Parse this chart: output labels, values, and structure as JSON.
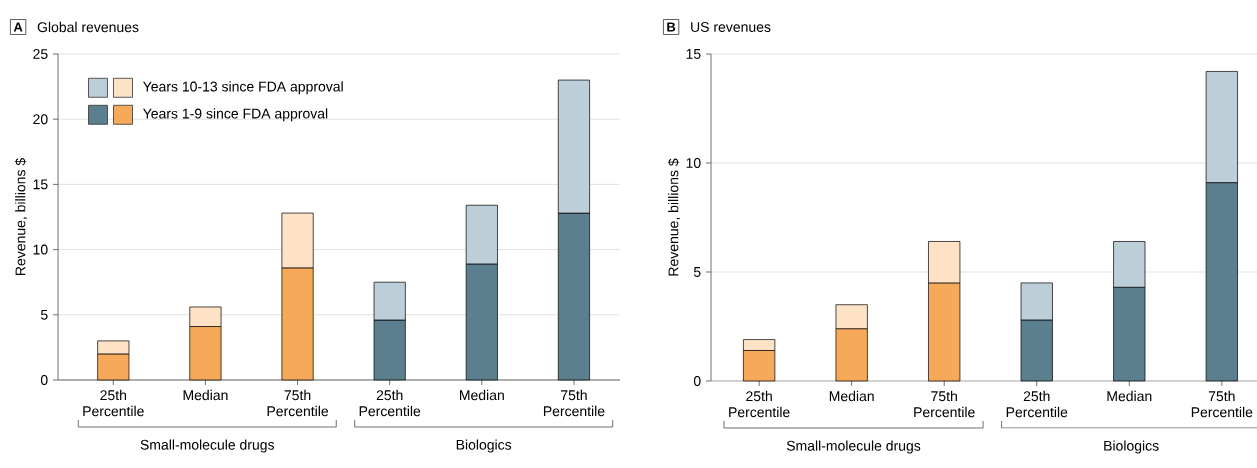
{
  "chart_data": [
    {
      "type": "bar",
      "title": "Global revenues",
      "ylabel": "Revenue, billions $",
      "stacked": true,
      "legend": "top left",
      "grid": "y",
      "annotations": [
        "A",
        "Small-molecule drugs",
        "Biologics"
      ],
      "categories": [
        "25th Percentile",
        "Median",
        "75th Percentile",
        "25th Percentile",
        "Median",
        "75th Percentile"
      ],
      "ylim": [
        0,
        25
      ],
      "yticks": [
        0,
        5,
        10,
        15,
        20,
        25
      ],
      "series": [
        {
          "name": "Years 1-9 since FDA approval",
          "colors": [
            "#f7a95a",
            "#f7a95a",
            "#f7a95a",
            "#5b7f8f",
            "#5b7f8f",
            "#5b7f8f"
          ],
          "values": [
            2.0,
            4.1,
            8.6,
            4.6,
            8.9,
            12.8
          ]
        },
        {
          "name": "Years 10-13 since FDA approval",
          "colors": [
            "#fde2c6",
            "#fde2c6",
            "#fde2c6",
            "#bccfd9",
            "#bccfd9",
            "#bccfd9"
          ],
          "values": [
            1.0,
            1.5,
            4.2,
            2.9,
            4.5,
            10.2
          ]
        }
      ]
    },
    {
      "type": "bar",
      "title": "US revenues",
      "ylabel": "Revenue, billions $",
      "stacked": true,
      "grid": "y",
      "annotations": [
        "B",
        "Small-molecule drugs",
        "Biologics"
      ],
      "categories": [
        "25th Percentile",
        "Median",
        "75th Percentile",
        "25th Percentile",
        "Median",
        "75th Percentile"
      ],
      "ylim": [
        0,
        15
      ],
      "yticks": [
        0,
        5,
        10,
        15
      ],
      "series": [
        {
          "colors": [
            "#f7a95a",
            "#f7a95a",
            "#f7a95a",
            "#5b7f8f",
            "#5b7f8f",
            "#5b7f8f"
          ],
          "values": [
            1.4,
            2.4,
            4.5,
            2.8,
            4.3,
            9.1
          ]
        },
        {
          "colors": [
            "#fde2c6",
            "#fde2c6",
            "#fde2c6",
            "#bccfd9",
            "#bccfd9",
            "#bccfd9"
          ],
          "values": [
            0.5,
            1.1,
            1.9,
            1.7,
            2.1,
            5.1
          ]
        }
      ]
    }
  ]
}
